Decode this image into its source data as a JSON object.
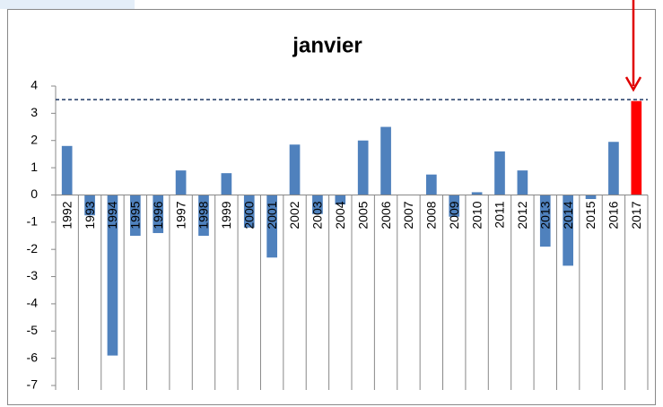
{
  "chart_data": {
    "type": "bar",
    "title": "janvier",
    "categories": [
      "1992",
      "1993",
      "1994",
      "1995",
      "1996",
      "1997",
      "1998",
      "1999",
      "2000",
      "2001",
      "2002",
      "2003",
      "2004",
      "2005",
      "2006",
      "2007",
      "2008",
      "2009",
      "2010",
      "2011",
      "2012",
      "2013",
      "2014",
      "2015",
      "2016",
      "2017"
    ],
    "values": [
      1.8,
      -0.75,
      -5.9,
      -1.5,
      -1.4,
      0.9,
      -1.5,
      0.8,
      -1.2,
      -2.3,
      1.85,
      -0.7,
      -0.35,
      2.0,
      2.5,
      0,
      0.75,
      -0.8,
      0.1,
      1.6,
      0.9,
      -1.9,
      -2.6,
      -0.15,
      1.95,
      3.45
    ],
    "colors": [
      "#4f81bd",
      "#4f81bd",
      "#4f81bd",
      "#4f81bd",
      "#4f81bd",
      "#4f81bd",
      "#4f81bd",
      "#4f81bd",
      "#4f81bd",
      "#4f81bd",
      "#4f81bd",
      "#4f81bd",
      "#4f81bd",
      "#4f81bd",
      "#4f81bd",
      "#4f81bd",
      "#4f81bd",
      "#4f81bd",
      "#4f81bd",
      "#4f81bd",
      "#4f81bd",
      "#4f81bd",
      "#4f81bd",
      "#4f81bd",
      "#4f81bd",
      "#ff0000"
    ],
    "reference_line": 3.5,
    "ylim": [
      -7,
      4
    ],
    "yticks": [
      -7,
      -6,
      -5,
      -4,
      -3,
      -2,
      -1,
      0,
      1,
      2,
      3,
      4
    ]
  }
}
